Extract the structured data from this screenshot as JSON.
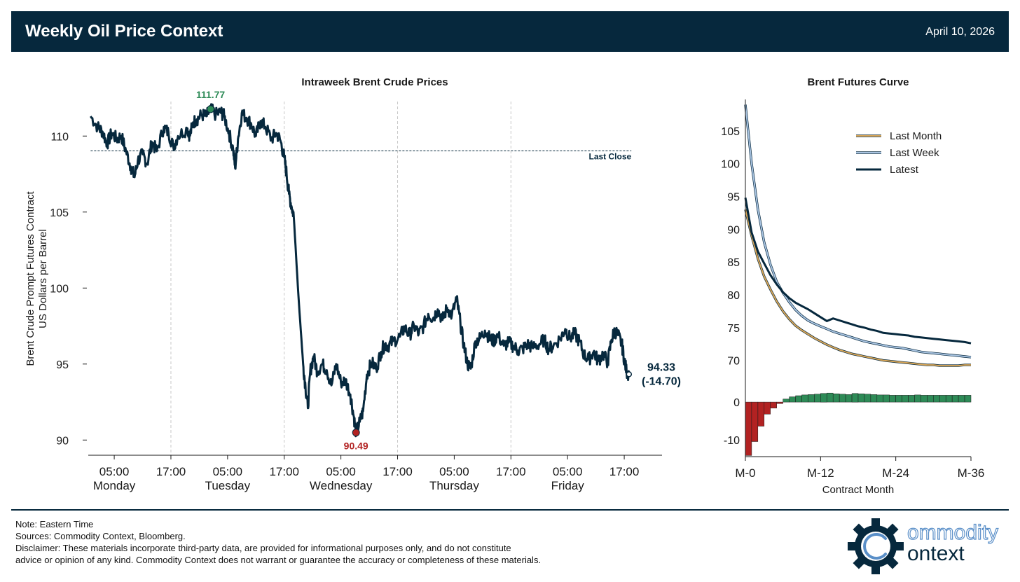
{
  "header": {
    "title": "Weekly Oil Price Context",
    "date": "April 10, 2026"
  },
  "footer": {
    "note": "Note: Eastern Time",
    "sources": "Sources: Commodity Context, Bloomberg.",
    "disclaimer_line1": "Disclaimer: These materials incorporate third-party data, are provided for informational purposes only, and do not constitute",
    "disclaimer_line2": "advice or opinion of any kind. Commodity Context does not warrant or guarantee the accuracy or completeness of these materials."
  },
  "logo": {
    "word1": "ommodity",
    "word2": "ontext",
    "icon": "gear-c-icon"
  },
  "colors": {
    "navy": "#06283d",
    "green": "#2e8b57",
    "red": "#b22222",
    "tan": "#d9a657",
    "lightblue": "#a9c4e2"
  },
  "chart_data": [
    {
      "type": "line",
      "title": "Intraweek Brent Crude Prices",
      "ylabel_line1": "Brent Crude Prompt Futures Contract",
      "ylabel_line2": "US Dollars per Barrel",
      "ylim": [
        89,
        112.5
      ],
      "yticks": [
        90,
        95,
        100,
        105,
        110
      ],
      "x_ticks": [
        {
          "pos": 5,
          "time": "05:00",
          "day": "Monday"
        },
        {
          "pos": 17,
          "time": "17:00",
          "day": ""
        },
        {
          "pos": 29,
          "time": "05:00",
          "day": "Tuesday"
        },
        {
          "pos": 41,
          "time": "17:00",
          "day": ""
        },
        {
          "pos": 53,
          "time": "05:00",
          "day": "Wednesday"
        },
        {
          "pos": 65,
          "time": "17:00",
          "day": ""
        },
        {
          "pos": 77,
          "time": "05:00",
          "day": "Thursday"
        },
        {
          "pos": 89,
          "time": "17:00",
          "day": ""
        },
        {
          "pos": 101,
          "time": "05:00",
          "day": "Friday"
        },
        {
          "pos": 113,
          "time": "17:00",
          "day": ""
        }
      ],
      "xlim": [
        -0.5,
        121
      ],
      "vlines": [
        17,
        41,
        65,
        89
      ],
      "last_close": {
        "value": 109.03,
        "label": "Last Close"
      },
      "high": {
        "x": 25.4,
        "value": 111.77,
        "label": "111.77"
      },
      "low": {
        "x": 49.8,
        "value": 90.49,
        "label": "90.49"
      },
      "last": {
        "x": 114,
        "value": 94.33,
        "label": "94.33",
        "change": "(-14.70)"
      },
      "series": [
        {
          "x": 0,
          "y": 111.3
        },
        {
          "x": 1.5,
          "y": 110.6
        },
        {
          "x": 2.5,
          "y": 110.3
        },
        {
          "x": 3.5,
          "y": 109.5
        },
        {
          "x": 4.5,
          "y": 110.2
        },
        {
          "x": 5.5,
          "y": 109.8
        },
        {
          "x": 6.5,
          "y": 110.0
        },
        {
          "x": 7.5,
          "y": 109.0
        },
        {
          "x": 8.5,
          "y": 108.0
        },
        {
          "x": 9.3,
          "y": 107.3
        },
        {
          "x": 10,
          "y": 108.4
        },
        {
          "x": 11,
          "y": 108.8
        },
        {
          "x": 12,
          "y": 108.2
        },
        {
          "x": 13,
          "y": 109.6
        },
        {
          "x": 14,
          "y": 109.0
        },
        {
          "x": 15.5,
          "y": 110.6
        },
        {
          "x": 16.5,
          "y": 110.2
        },
        {
          "x": 17.5,
          "y": 109.3
        },
        {
          "x": 18.5,
          "y": 110.0
        },
        {
          "x": 20.5,
          "y": 110.5
        },
        {
          "x": 21,
          "y": 110.0
        },
        {
          "x": 21.7,
          "y": 110.9
        },
        {
          "x": 22.5,
          "y": 111.1
        },
        {
          "x": 23.5,
          "y": 111.4
        },
        {
          "x": 24.5,
          "y": 111.3
        },
        {
          "x": 25.4,
          "y": 111.77
        },
        {
          "x": 26.5,
          "y": 111.4
        },
        {
          "x": 27.5,
          "y": 111.6
        },
        {
          "x": 28.3,
          "y": 111.3
        },
        {
          "x": 29.3,
          "y": 110.2
        },
        {
          "x": 30.2,
          "y": 109.1
        },
        {
          "x": 30.6,
          "y": 107.9
        },
        {
          "x": 31.2,
          "y": 109.8
        },
        {
          "x": 32,
          "y": 111.5
        },
        {
          "x": 33,
          "y": 111.2
        },
        {
          "x": 34,
          "y": 110.8
        },
        {
          "x": 35,
          "y": 110.0
        },
        {
          "x": 36,
          "y": 111.0
        },
        {
          "x": 37,
          "y": 110.6
        },
        {
          "x": 38.3,
          "y": 109.8
        },
        {
          "x": 39.3,
          "y": 110.2
        },
        {
          "x": 40.2,
          "y": 109.7
        },
        {
          "x": 41,
          "y": 108.6
        },
        {
          "x": 41.5,
          "y": 107.5
        },
        {
          "x": 42,
          "y": 106.2
        },
        {
          "x": 42.6,
          "y": 105.3
        },
        {
          "x": 43,
          "y": 104.8
        },
        {
          "x": 44,
          "y": 99.5
        },
        {
          "x": 45,
          "y": 95.0
        },
        {
          "x": 45.5,
          "y": 93.5
        },
        {
          "x": 46,
          "y": 92.1
        },
        {
          "x": 46.5,
          "y": 94.5
        },
        {
          "x": 47.2,
          "y": 95.5
        },
        {
          "x": 48,
          "y": 94.5
        },
        {
          "x": 49,
          "y": 95.0
        },
        {
          "x": 50,
          "y": 94.6
        },
        {
          "x": 51,
          "y": 93.6
        },
        {
          "x": 52,
          "y": 95.0
        },
        {
          "x": 53,
          "y": 93.8
        },
        {
          "x": 54,
          "y": 93.9
        },
        {
          "x": 55,
          "y": 93.0
        },
        {
          "x": 55.7,
          "y": 91.6
        },
        {
          "x": 56.2,
          "y": 90.49
        },
        {
          "x": 57,
          "y": 91.2
        },
        {
          "x": 57.7,
          "y": 91.9
        },
        {
          "x": 58.5,
          "y": 94.3
        },
        {
          "x": 59.5,
          "y": 95.1
        },
        {
          "x": 60.5,
          "y": 94.7
        },
        {
          "x": 61.5,
          "y": 95.8
        },
        {
          "x": 62.3,
          "y": 96.3
        },
        {
          "x": 63,
          "y": 96.2
        },
        {
          "x": 64,
          "y": 96.5
        },
        {
          "x": 65.5,
          "y": 96.8
        },
        {
          "x": 66.5,
          "y": 97.4
        },
        {
          "x": 67.5,
          "y": 96.9
        },
        {
          "x": 68.5,
          "y": 97.5
        },
        {
          "x": 69.5,
          "y": 97.0
        },
        {
          "x": 70.5,
          "y": 97.5
        },
        {
          "x": 71.5,
          "y": 98.3
        },
        {
          "x": 72.5,
          "y": 98.0
        },
        {
          "x": 73.5,
          "y": 98.6
        },
        {
          "x": 74.5,
          "y": 97.9
        },
        {
          "x": 75.5,
          "y": 98.7
        },
        {
          "x": 76.5,
          "y": 98.2
        },
        {
          "x": 77.5,
          "y": 99.3
        },
        {
          "x": 78.3,
          "y": 97.7
        },
        {
          "x": 79,
          "y": 96.3
        },
        {
          "x": 79.8,
          "y": 95.0
        },
        {
          "x": 80.5,
          "y": 94.7
        },
        {
          "x": 81.5,
          "y": 96.5
        },
        {
          "x": 82.5,
          "y": 96.7
        },
        {
          "x": 83.5,
          "y": 97.2
        },
        {
          "x": 84.5,
          "y": 96.7
        },
        {
          "x": 85.3,
          "y": 96.5
        },
        {
          "x": 86.2,
          "y": 96.9
        },
        {
          "x": 87.5,
          "y": 96.2
        },
        {
          "x": 88.5,
          "y": 96.4
        },
        {
          "x": 89.5,
          "y": 96.2
        },
        {
          "x": 90.5,
          "y": 95.9
        },
        {
          "x": 91.5,
          "y": 96.0
        },
        {
          "x": 92.5,
          "y": 96.3
        },
        {
          "x": 93.5,
          "y": 96.1
        },
        {
          "x": 95,
          "y": 96.3
        },
        {
          "x": 96,
          "y": 96.6
        },
        {
          "x": 97,
          "y": 96.0
        },
        {
          "x": 98,
          "y": 96.2
        },
        {
          "x": 99.5,
          "y": 96.7
        },
        {
          "x": 100.5,
          "y": 97.3
        },
        {
          "x": 101.5,
          "y": 96.7
        },
        {
          "x": 102.5,
          "y": 97.0
        },
        {
          "x": 103.5,
          "y": 96.5
        },
        {
          "x": 104.5,
          "y": 95.6
        },
        {
          "x": 105.5,
          "y": 95.3
        },
        {
          "x": 106.5,
          "y": 95.8
        },
        {
          "x": 107.5,
          "y": 95.2
        },
        {
          "x": 108.5,
          "y": 95.7
        },
        {
          "x": 109.5,
          "y": 95.1
        },
        {
          "x": 110.3,
          "y": 96.6
        },
        {
          "x": 111,
          "y": 97.2
        },
        {
          "x": 111.7,
          "y": 96.9
        },
        {
          "x": 112.5,
          "y": 96.3
        },
        {
          "x": 113,
          "y": 95.3
        },
        {
          "x": 113.5,
          "y": 94.5
        },
        {
          "x": 114,
          "y": 94.33
        }
      ]
    },
    {
      "type": "line",
      "title": "Brent Futures Curve",
      "xlabel": "Contract Month",
      "xlim": [
        0,
        36
      ],
      "xticks": [
        {
          "m": 0,
          "label": "M-0"
        },
        {
          "m": 12,
          "label": "M-12"
        },
        {
          "m": 24,
          "label": "M-24"
        },
        {
          "m": 36,
          "label": "M-36"
        }
      ],
      "ylim": [
        67.5,
        110
      ],
      "yticks": [
        70,
        75,
        80,
        85,
        90,
        95,
        100,
        105
      ],
      "legend_position": "top-right",
      "series": [
        {
          "name": "Last Month",
          "color": "#d9a657",
          "values": [
            93.0,
            89.0,
            85.5,
            82.8,
            80.8,
            79.0,
            77.5,
            76.3,
            75.3,
            74.6,
            74.0,
            73.4,
            72.9,
            72.4,
            72.0,
            71.6,
            71.3,
            71.0,
            70.8,
            70.6,
            70.4,
            70.2,
            70.0,
            69.9,
            69.8,
            69.7,
            69.6,
            69.5,
            69.4,
            69.3,
            69.3,
            69.2,
            69.2,
            69.2,
            69.2,
            69.3,
            69.3
          ]
        },
        {
          "name": "Last Week",
          "color": "#a9c4e2",
          "values": [
            109.0,
            100.0,
            93.0,
            88.0,
            84.6,
            82.0,
            80.3,
            78.9,
            77.7,
            76.8,
            76.1,
            75.6,
            75.2,
            74.8,
            74.4,
            74.1,
            73.8,
            73.5,
            73.2,
            72.9,
            72.7,
            72.5,
            72.3,
            72.1,
            72.0,
            71.9,
            71.7,
            71.5,
            71.3,
            71.2,
            71.1,
            71.0,
            70.9,
            70.8,
            70.7,
            70.6,
            70.5
          ]
        },
        {
          "name": "Latest",
          "color": "#06283d",
          "values": [
            94.8,
            89.5,
            86.6,
            84.8,
            83.0,
            81.6,
            80.4,
            79.5,
            78.8,
            78.3,
            77.8,
            77.2,
            76.6,
            76.0,
            76.4,
            76.1,
            75.8,
            75.5,
            75.2,
            75.0,
            74.7,
            74.5,
            74.2,
            74.1,
            74.0,
            73.9,
            73.8,
            73.6,
            73.5,
            73.4,
            73.3,
            73.2,
            73.1,
            73.0,
            72.9,
            72.8,
            72.6
          ]
        }
      ]
    },
    {
      "type": "bar",
      "title": "",
      "ylim": [
        -14.5,
        3
      ],
      "yticks": [
        0,
        -10
      ],
      "categories": [
        0,
        1,
        2,
        3,
        4,
        5,
        6,
        7,
        8,
        9,
        10,
        11,
        12,
        13,
        14,
        15,
        16,
        17,
        18,
        19,
        20,
        21,
        22,
        23,
        24,
        25,
        26,
        27,
        28,
        29,
        30,
        31,
        32,
        33,
        34,
        35
      ],
      "values": [
        -14.2,
        -10.5,
        -6.4,
        -3.2,
        -1.6,
        -0.4,
        0.8,
        1.4,
        1.7,
        1.9,
        2.0,
        2.1,
        2.3,
        2.4,
        2.2,
        2.1,
        2.0,
        2.3,
        2.2,
        2.1,
        2.0,
        1.9,
        1.9,
        1.8,
        1.8,
        1.8,
        1.8,
        1.9,
        1.8,
        1.8,
        1.8,
        1.8,
        1.8,
        1.8,
        1.8,
        1.8
      ]
    }
  ]
}
